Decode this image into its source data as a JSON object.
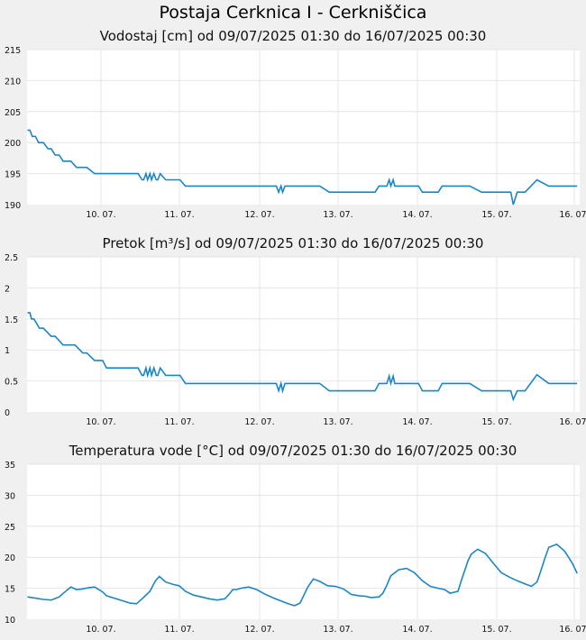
{
  "station_title": "Postaja Cerknica I - Cerkniščica",
  "chart_data": [
    {
      "type": "line",
      "title": "Vodostaj [cm] od 09/07/2025 01:30 do 16/07/2025 00:30",
      "categories": [
        "10. 07.",
        "11. 07.",
        "12. 07.",
        "13. 07.",
        "14. 07.",
        "15. 07.",
        "16. 07."
      ],
      "ylim": [
        190,
        215
      ],
      "yticks": [
        "190",
        "195",
        "200",
        "205",
        "210",
        "215"
      ],
      "grid": true,
      "series": [
        {
          "color": "#1a86c8",
          "x": [
            0.0,
            0.03,
            0.06,
            0.1,
            0.14,
            0.2,
            0.26,
            0.3,
            0.35,
            0.4,
            0.45,
            0.55,
            0.62,
            0.75,
            0.85,
            0.95,
            1.0,
            1.05,
            1.2,
            1.35,
            1.4,
            1.45,
            1.47,
            1.5,
            1.52,
            1.55,
            1.57,
            1.6,
            1.63,
            1.65,
            1.68,
            1.75,
            1.85,
            1.93,
            2.0,
            2.2,
            2.5,
            2.8,
            3.05,
            3.15,
            3.18,
            3.21,
            3.23,
            3.26,
            3.3,
            3.5,
            3.7,
            3.82,
            3.9,
            4.0,
            4.2,
            4.4,
            4.45,
            4.5,
            4.55,
            4.58,
            4.6,
            4.63,
            4.65,
            4.7,
            4.8,
            4.95,
            5.0,
            5.05,
            5.2,
            5.25,
            5.3,
            5.5,
            5.6,
            5.75,
            5.9,
            6.0,
            6.05,
            6.08,
            6.1,
            6.12,
            6.15,
            6.2,
            6.25,
            6.3,
            6.45,
            6.6,
            6.96
          ],
          "values": [
            202,
            202,
            201,
            201,
            200,
            200,
            199,
            199,
            198,
            198,
            197,
            197,
            196,
            196,
            195,
            195,
            195,
            195,
            195,
            195,
            195,
            194,
            194,
            195,
            194,
            195,
            194,
            195,
            194,
            194,
            195,
            194,
            194,
            194,
            193,
            193,
            193,
            193,
            193,
            193,
            192,
            193,
            192,
            193,
            193,
            193,
            193,
            192,
            192,
            192,
            192,
            192,
            193,
            193,
            193,
            194,
            193,
            194,
            193,
            193,
            193,
            193,
            192,
            192,
            192,
            193,
            193,
            193,
            193,
            192,
            192,
            192,
            192,
            192,
            192,
            192,
            190,
            192,
            192,
            192,
            194,
            193,
            193
          ]
        }
      ]
    },
    {
      "type": "line",
      "title": "Pretok [m³/s] od 09/07/2025 01:30 do 16/07/2025 00:30",
      "categories": [
        "10. 07.",
        "11. 07.",
        "12. 07.",
        "13. 07.",
        "14. 07.",
        "15. 07.",
        "16. 07."
      ],
      "ylim": [
        0,
        2.5
      ],
      "yticks": [
        "0",
        "0.5",
        "1",
        "1.5",
        "2",
        "2.5"
      ],
      "grid": true,
      "series": [
        {
          "color": "#1a86c8",
          "x": [
            0.0,
            0.03,
            0.05,
            0.08,
            0.1,
            0.15,
            0.2,
            0.3,
            0.35,
            0.45,
            0.5,
            0.6,
            0.7,
            0.75,
            0.85,
            0.95,
            1.0,
            1.05,
            1.2,
            1.35,
            1.4,
            1.45,
            1.47,
            1.5,
            1.52,
            1.55,
            1.57,
            1.6,
            1.63,
            1.65,
            1.68,
            1.75,
            1.85,
            1.93,
            2.0,
            2.2,
            2.5,
            2.8,
            3.05,
            3.15,
            3.18,
            3.21,
            3.23,
            3.26,
            3.3,
            3.5,
            3.7,
            3.82,
            3.9,
            4.0,
            4.2,
            4.4,
            4.45,
            4.5,
            4.55,
            4.58,
            4.6,
            4.63,
            4.65,
            4.7,
            4.8,
            4.95,
            5.0,
            5.05,
            5.2,
            5.25,
            5.3,
            5.5,
            5.6,
            5.75,
            5.9,
            6.0,
            6.05,
            6.08,
            6.1,
            6.12,
            6.15,
            6.2,
            6.25,
            6.3,
            6.45,
            6.6,
            6.96
          ],
          "values": [
            1.6,
            1.6,
            1.5,
            1.5,
            1.46,
            1.35,
            1.35,
            1.22,
            1.22,
            1.08,
            1.08,
            1.08,
            0.95,
            0.95,
            0.83,
            0.83,
            0.71,
            0.71,
            0.71,
            0.71,
            0.71,
            0.59,
            0.59,
            0.71,
            0.59,
            0.71,
            0.59,
            0.71,
            0.59,
            0.59,
            0.71,
            0.59,
            0.59,
            0.59,
            0.46,
            0.46,
            0.46,
            0.46,
            0.46,
            0.46,
            0.34,
            0.46,
            0.34,
            0.46,
            0.46,
            0.46,
            0.46,
            0.34,
            0.34,
            0.34,
            0.34,
            0.34,
            0.46,
            0.46,
            0.46,
            0.58,
            0.46,
            0.58,
            0.46,
            0.46,
            0.46,
            0.46,
            0.34,
            0.34,
            0.34,
            0.46,
            0.46,
            0.46,
            0.46,
            0.34,
            0.34,
            0.34,
            0.34,
            0.34,
            0.34,
            0.34,
            0.2,
            0.34,
            0.34,
            0.34,
            0.6,
            0.46,
            0.46
          ]
        }
      ]
    },
    {
      "type": "line",
      "title": "Temperatura vode [°C] od 09/07/2025 01:30 do 16/07/2025 00:30",
      "categories": [
        "10. 07.",
        "11. 07.",
        "12. 07.",
        "13. 07.",
        "14. 07.",
        "15. 07.",
        "16. 07."
      ],
      "ylim": [
        10,
        35
      ],
      "yticks": [
        "10",
        "15",
        "20",
        "25",
        "30",
        "35"
      ],
      "grid": true,
      "series": [
        {
          "color": "#1a86c8",
          "x": [
            0.0,
            0.1,
            0.2,
            0.3,
            0.4,
            0.5,
            0.55,
            0.62,
            0.7,
            0.78,
            0.85,
            0.95,
            1.0,
            1.1,
            1.2,
            1.3,
            1.38,
            1.45,
            1.55,
            1.62,
            1.67,
            1.75,
            1.85,
            1.92,
            2.0,
            2.1,
            2.2,
            2.3,
            2.4,
            2.5,
            2.55,
            2.6,
            2.65,
            2.7,
            2.8,
            2.9,
            3.0,
            3.1,
            3.2,
            3.3,
            3.38,
            3.45,
            3.5,
            3.55,
            3.62,
            3.7,
            3.8,
            3.9,
            4.0,
            4.1,
            4.2,
            4.28,
            4.35,
            4.45,
            4.5,
            4.55,
            4.6,
            4.7,
            4.8,
            4.9,
            5.0,
            5.1,
            5.2,
            5.28,
            5.35,
            5.45,
            5.5,
            5.58,
            5.62,
            5.7,
            5.8,
            5.9,
            6.0,
            6.1,
            6.2,
            6.3,
            6.38,
            6.45,
            6.5,
            6.55,
            6.6,
            6.7,
            6.8,
            6.9,
            6.96
          ],
          "values": [
            13.6,
            13.4,
            13.2,
            13.1,
            13.6,
            14.7,
            15.2,
            14.8,
            14.9,
            15.1,
            15.2,
            14.4,
            13.8,
            13.4,
            13.0,
            12.6,
            12.5,
            13.3,
            14.5,
            16.2,
            16.9,
            16.0,
            15.6,
            15.4,
            14.5,
            13.9,
            13.6,
            13.3,
            13.1,
            13.3,
            14.0,
            14.8,
            14.8,
            15.0,
            15.2,
            14.8,
            14.1,
            13.5,
            13.0,
            12.5,
            12.2,
            12.6,
            13.9,
            15.2,
            16.5,
            16.1,
            15.4,
            15.3,
            14.9,
            14.0,
            13.8,
            13.7,
            13.5,
            13.6,
            14.2,
            15.5,
            17.0,
            18.0,
            18.2,
            17.5,
            16.2,
            15.3,
            15.0,
            14.8,
            14.2,
            14.5,
            16.5,
            19.5,
            20.5,
            21.3,
            20.6,
            19.0,
            17.5,
            16.8,
            16.2,
            15.7,
            15.3,
            16.0,
            17.8,
            19.8,
            21.6,
            22.1,
            21.0,
            19.0,
            17.4
          ]
        }
      ]
    }
  ]
}
